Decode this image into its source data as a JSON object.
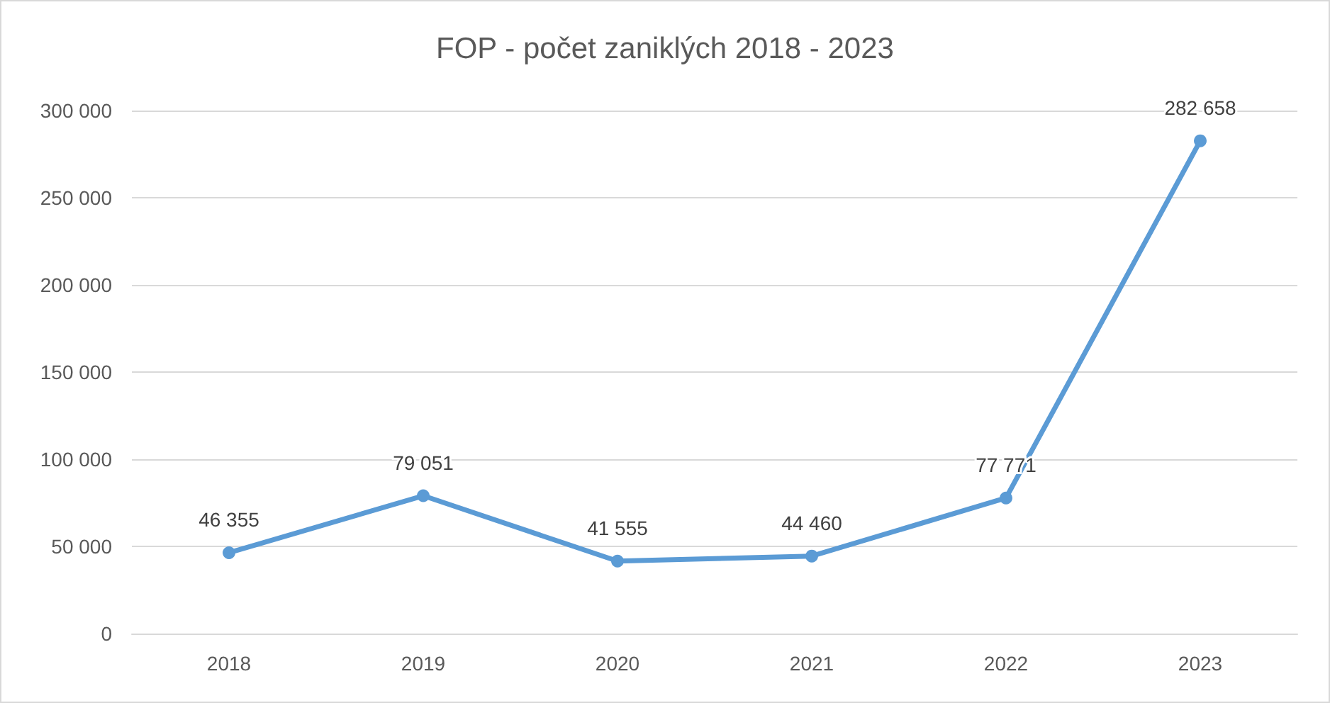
{
  "chart_data": {
    "type": "line",
    "title": "FOP - počet zaniklých 2018 - 2023",
    "categories": [
      "2018",
      "2019",
      "2020",
      "2021",
      "2022",
      "2023"
    ],
    "series": [
      {
        "color": "#5b9bd5",
        "values": [
          46355,
          79051,
          41555,
          44460,
          77771,
          282658
        ],
        "value_labels": [
          "46 355",
          "79 051",
          "41 555",
          "44 460",
          "77 771",
          "282 658"
        ]
      }
    ],
    "ylim": [
      0,
      300000
    ],
    "yticks": [
      {
        "value": 0,
        "label": "0"
      },
      {
        "value": 50000,
        "label": "50 000"
      },
      {
        "value": 100000,
        "label": "100 000"
      },
      {
        "value": 150000,
        "label": "150 000"
      },
      {
        "value": 200000,
        "label": "200 000"
      },
      {
        "value": 250000,
        "label": "250 000"
      },
      {
        "value": 300000,
        "label": "300 000"
      }
    ],
    "grid": "y",
    "marker": "circle",
    "line_style": "solid"
  }
}
